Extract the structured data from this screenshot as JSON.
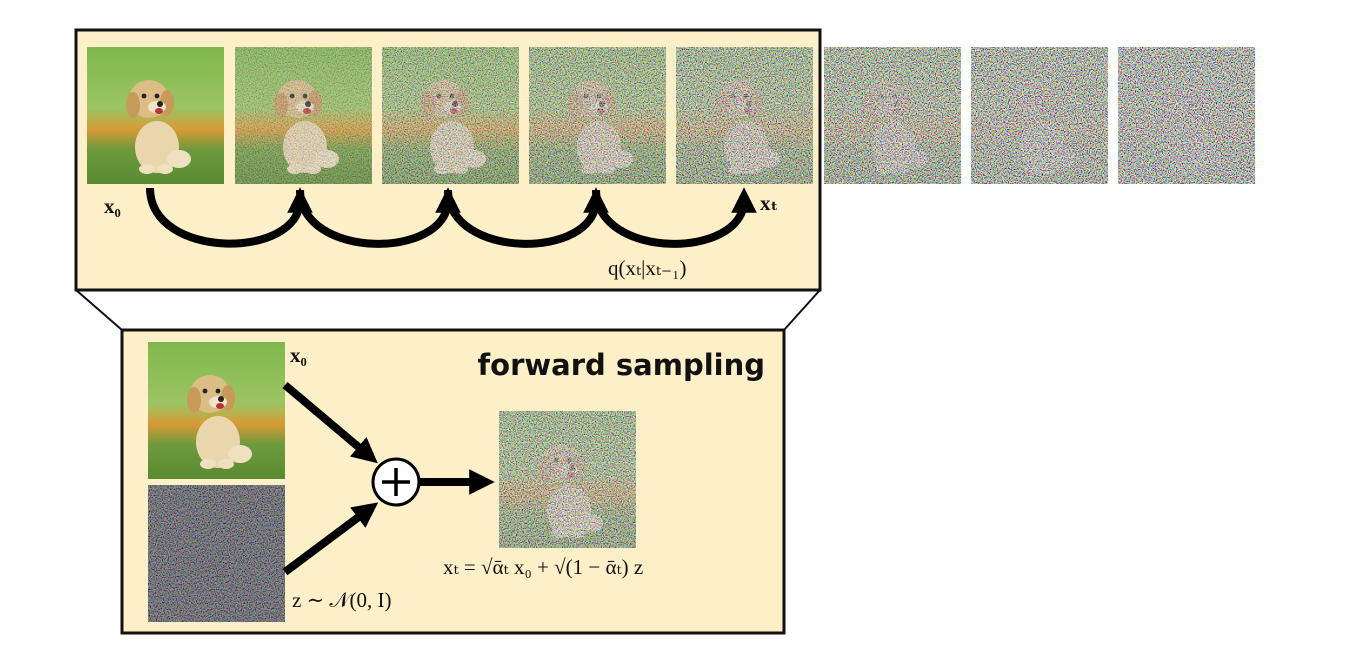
{
  "chain": {
    "start_label": "x₀",
    "end_label": "xₜ",
    "transition_label": "q(xₜ|xₜ₋₁)"
  },
  "forward_sampling": {
    "title": "forward sampling",
    "input_label": "x₀",
    "noise_label": "z ∼ 𝒩(0, I)",
    "equation": "xₜ = √ᾱₜ x₀ + √(1 − ᾱₜ) z"
  }
}
